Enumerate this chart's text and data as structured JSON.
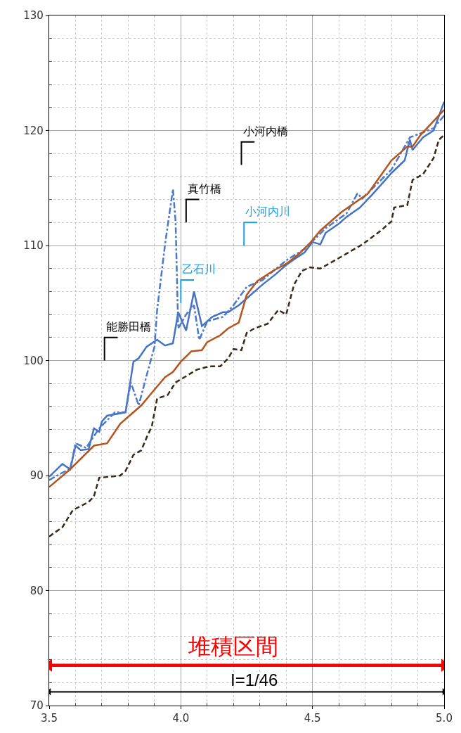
{
  "chart_data": {
    "type": "line",
    "xlim": [
      3.5,
      5.0
    ],
    "ylim": [
      70,
      130
    ],
    "xticks": [
      {
        "value": 3.5,
        "label": "3.5"
      },
      {
        "value": 3.6,
        "label": null
      },
      {
        "value": 3.7,
        "label": null
      },
      {
        "value": 3.8,
        "label": null
      },
      {
        "value": 3.9,
        "label": null
      },
      {
        "value": 4.0,
        "label": "4.0"
      },
      {
        "value": 4.1,
        "label": null
      },
      {
        "value": 4.2,
        "label": null
      },
      {
        "value": 4.3,
        "label": null
      },
      {
        "value": 4.4,
        "label": null
      },
      {
        "value": 4.5,
        "label": "4.5"
      },
      {
        "value": 4.6,
        "label": null
      },
      {
        "value": 4.7,
        "label": null
      },
      {
        "value": 4.8,
        "label": null
      },
      {
        "value": 4.9,
        "label": null
      },
      {
        "value": 5.0,
        "label": "5.0"
      }
    ],
    "yticks": [
      70,
      {
        "value": 72,
        "label": null
      },
      {
        "value": 74,
        "label": null
      },
      {
        "value": 76,
        "label": null
      },
      {
        "value": 78,
        "label": null
      },
      80,
      {
        "value": 82,
        "label": null
      },
      {
        "value": 84,
        "label": null
      },
      {
        "value": 86,
        "label": null
      },
      {
        "value": 88,
        "label": null
      },
      90,
      {
        "value": 92,
        "label": null
      },
      {
        "value": 94,
        "label": null
      },
      {
        "value": 96,
        "label": null
      },
      {
        "value": 98,
        "label": null
      },
      100,
      {
        "value": 102,
        "label": null
      },
      {
        "value": 104,
        "label": null
      },
      {
        "value": 106,
        "label": null
      },
      {
        "value": 108,
        "label": null
      },
      110,
      {
        "value": 112,
        "label": null
      },
      {
        "value": 114,
        "label": null
      },
      {
        "value": 116,
        "label": null
      },
      {
        "value": 118,
        "label": null
      },
      120,
      {
        "value": 122,
        "label": null
      },
      {
        "value": 124,
        "label": null
      },
      {
        "value": 126,
        "label": null
      },
      {
        "value": 128,
        "label": null
      },
      130
    ],
    "grid": true,
    "legend": false,
    "marker": "none",
    "series": [
      {
        "color": "#4472c4",
        "line_style": "solid",
        "x": [
          3.5,
          3.55,
          3.58,
          3.6,
          3.62,
          3.65,
          3.67,
          3.69,
          3.7,
          3.72,
          3.79,
          3.82,
          3.84,
          3.87,
          3.91,
          3.94,
          3.97,
          3.99,
          4.02,
          4.05,
          4.08,
          4.12,
          4.16,
          4.18,
          4.22,
          4.25,
          4.31,
          4.36,
          4.4,
          4.43,
          4.47,
          4.5,
          4.53,
          4.55,
          4.6,
          4.63,
          4.68,
          4.73,
          4.8,
          4.85,
          4.87,
          4.88,
          4.92,
          4.96,
          5.0
        ],
        "values": [
          89.9,
          91.0,
          90.55,
          92.6,
          92.2,
          92.3,
          94.1,
          93.8,
          94.7,
          95.2,
          95.5,
          99.9,
          100.2,
          101.2,
          101.8,
          101.3,
          101.5,
          104.2,
          102.6,
          106.0,
          103.0,
          103.8,
          104.2,
          104.2,
          104.8,
          105.4,
          106.6,
          107.5,
          108.3,
          108.8,
          109.4,
          110.3,
          110.1,
          111.1,
          111.9,
          112.5,
          113.3,
          114.5,
          116.3,
          117.4,
          119.2,
          118.3,
          119.4,
          120.0,
          122.5
        ]
      },
      {
        "color": "#4a78cc",
        "line_style": "dashdot",
        "x": [
          3.5,
          3.53,
          3.58,
          3.6,
          3.64,
          3.69,
          3.75,
          3.79,
          3.81,
          3.84,
          3.87,
          3.9,
          3.91,
          3.94,
          3.97,
          3.98,
          3.99,
          4.02,
          4.05,
          4.07,
          4.1,
          4.16,
          4.2,
          4.25,
          4.31,
          4.4,
          4.47,
          4.55,
          4.63,
          4.67,
          4.69,
          4.8,
          4.87,
          4.96,
          5.0
        ],
        "values": [
          89.6,
          90.0,
          90.6,
          92.8,
          92.4,
          94.1,
          95.5,
          95.5,
          98.1,
          96.1,
          98.7,
          101.2,
          104.4,
          110.1,
          114.9,
          112.1,
          102.8,
          104.0,
          104.8,
          101.8,
          103.4,
          103.8,
          104.8,
          106.4,
          107.0,
          108.7,
          109.7,
          111.5,
          112.8,
          114.5,
          114.1,
          116.6,
          119.4,
          120.2,
          121.3
        ]
      },
      {
        "color": "#b5541c",
        "line_style": "solid",
        "x": [
          3.5,
          3.58,
          3.67,
          3.72,
          3.77,
          3.85,
          3.89,
          3.94,
          3.97,
          4.0,
          4.04,
          4.08,
          4.1,
          4.15,
          4.18,
          4.22,
          4.25,
          4.29,
          4.35,
          4.4,
          4.45,
          4.49,
          4.53,
          4.61,
          4.71,
          4.8,
          4.86,
          4.88,
          4.91,
          5.0
        ],
        "values": [
          89.0,
          90.55,
          92.6,
          92.8,
          94.5,
          96.1,
          97.2,
          98.55,
          99.0,
          99.9,
          100.8,
          100.9,
          101.6,
          102.2,
          102.8,
          103.3,
          105.7,
          106.9,
          107.8,
          108.4,
          109.3,
          110.2,
          111.3,
          112.9,
          114.5,
          117.4,
          118.6,
          118.6,
          119.6,
          121.8
        ]
      },
      {
        "name": "能勝田橋",
        "color": "#000000",
        "type": "line",
        "x": [
          3.71,
          3.71,
          3.76
        ],
        "values": [
          100.0,
          102.0,
          102.0
        ]
      },
      {
        "name": "真竹橋",
        "color": "#000000",
        "type": "line",
        "x": [
          4.02,
          4.02,
          4.07
        ],
        "values": [
          112.0,
          114.0,
          114.0
        ]
      },
      {
        "name": "乙石川",
        "color": "#1aa0e0",
        "type": "line",
        "x": [
          4.0,
          4.0,
          4.05
        ],
        "values": [
          105.0,
          107.0,
          107.0
        ]
      },
      {
        "name": "小河内川",
        "color": "#1aa0e0",
        "type": "line",
        "x": [
          4.24,
          4.24,
          4.29
        ],
        "values": [
          110.0,
          112.0,
          112.0
        ]
      },
      {
        "name": "小河内橋",
        "color": "#000000",
        "type": "line",
        "x": [
          4.23,
          4.23,
          4.28
        ],
        "values": [
          117.0,
          119.0,
          119.0
        ]
      },
      {
        "name": "堆積区間",
        "color": "#ff0000",
        "type": "line",
        "marker": "triangle",
        "x": [
          3.5,
          5.0
        ],
        "values": [
          73.5,
          73.5
        ]
      },
      {
        "name": "I=1/46",
        "color": "#000000",
        "type": "line",
        "marker": "triangle",
        "x": [
          3.5,
          5.0
        ],
        "values": [
          71.2,
          71.2
        ]
      },
      {
        "color": "#3b2a14",
        "line_style": "dashed",
        "x": [
          3.5,
          3.55,
          3.59,
          3.65,
          3.67,
          3.69,
          3.77,
          3.79,
          3.82,
          3.85,
          3.87,
          3.89,
          3.91,
          3.95,
          3.98,
          4.01,
          4.06,
          4.11,
          4.15,
          4.18,
          4.2,
          4.23,
          4.25,
          4.28,
          4.33,
          4.37,
          4.4,
          4.43,
          4.46,
          4.49,
          4.53,
          4.6,
          4.63,
          4.69,
          4.76,
          4.8,
          4.81,
          4.86,
          4.88,
          4.92,
          4.96,
          4.98,
          5.0
        ],
        "values": [
          84.7,
          85.5,
          87.0,
          87.7,
          88.2,
          89.8,
          90.0,
          90.4,
          91.8,
          92.2,
          93.3,
          94.3,
          96.7,
          97.0,
          98.1,
          98.5,
          99.2,
          99.5,
          99.5,
          100.2,
          101.0,
          100.9,
          102.4,
          102.8,
          103.2,
          104.4,
          104.0,
          106.6,
          107.8,
          108.1,
          108.0,
          108.9,
          109.3,
          110.1,
          111.3,
          112.1,
          113.3,
          113.5,
          115.7,
          116.2,
          117.6,
          119.2,
          119.6
        ]
      }
    ]
  }
}
